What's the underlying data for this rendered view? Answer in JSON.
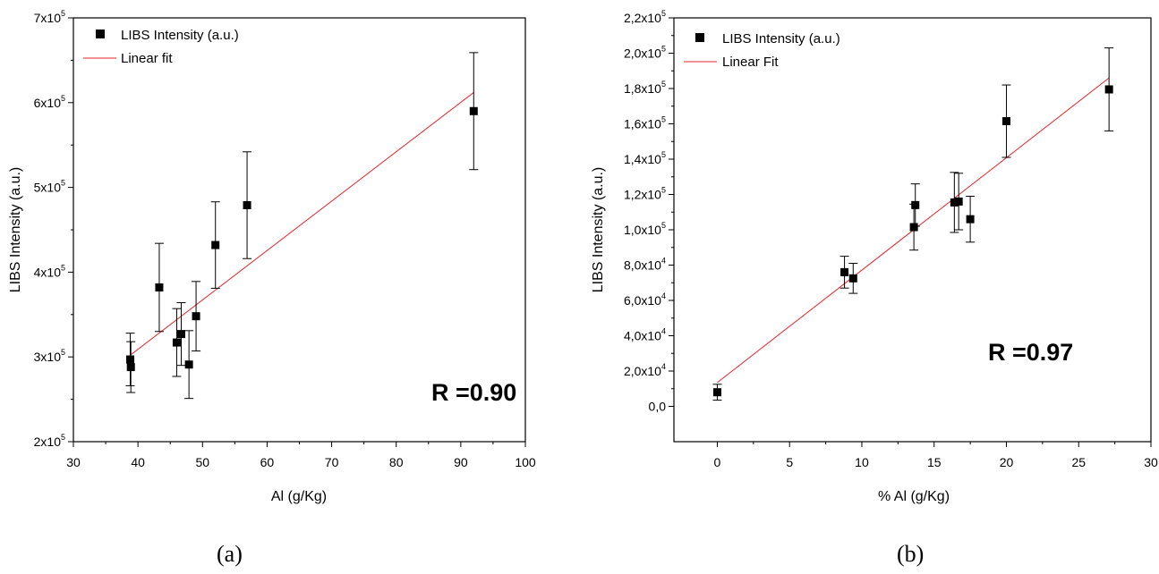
{
  "chart_data": [
    {
      "type": "scatter",
      "panel_label": "(a)",
      "xlabel": "Al (g/Kg)",
      "ylabel": "LIBS Intensity (a.u.)",
      "xlim": [
        30,
        100
      ],
      "ylim": [
        200000,
        700000
      ],
      "x_ticks": [
        30,
        40,
        50,
        60,
        70,
        80,
        90,
        100
      ],
      "x_tick_labels": [
        "30",
        "40",
        "50",
        "60",
        "70",
        "80",
        "90",
        "100"
      ],
      "y_ticks": [
        200000,
        300000,
        400000,
        500000,
        600000,
        700000
      ],
      "y_tick_labels": [
        {
          "mantissa": "2x10",
          "exp": "5"
        },
        {
          "mantissa": "3x10",
          "exp": "5"
        },
        {
          "mantissa": "4x10",
          "exp": "5"
        },
        {
          "mantissa": "5x10",
          "exp": "5"
        },
        {
          "mantissa": "6x10",
          "exp": "5"
        },
        {
          "mantissa": "7x10",
          "exp": "5"
        }
      ],
      "annotation": "R =0.90",
      "legend_position": "top-left",
      "series": [
        {
          "name": "LIBS Intensity (a.u.)",
          "kind": "points",
          "color": "#000000",
          "points": [
            {
              "x": 38.8,
              "y": 297000,
              "err": 31000
            },
            {
              "x": 38.9,
              "y": 288000,
              "err": 30000
            },
            {
              "x": 43.3,
              "y": 382000,
              "err": 52000
            },
            {
              "x": 46.0,
              "y": 317000,
              "err": 40000
            },
            {
              "x": 46.7,
              "y": 327000,
              "err": 37000
            },
            {
              "x": 47.9,
              "y": 291000,
              "err": 40000
            },
            {
              "x": 49.0,
              "y": 348000,
              "err": 41000
            },
            {
              "x": 52.0,
              "y": 432000,
              "err": 51000
            },
            {
              "x": 56.9,
              "y": 479000,
              "err": 63000
            },
            {
              "x": 92.0,
              "y": 590000,
              "err": 69000
            }
          ]
        },
        {
          "name": "Linear fit",
          "kind": "line",
          "color": "#e8232a",
          "points": [
            {
              "x": 38.8,
              "y": 302000
            },
            {
              "x": 92.0,
              "y": 612000
            }
          ]
        }
      ]
    },
    {
      "type": "scatter",
      "panel_label": "(b)",
      "xlabel": "% Al (g/Kg)",
      "ylabel": "LIBS Intensity (a.u.)",
      "xlim": [
        -3,
        30
      ],
      "ylim": [
        -20000,
        220000
      ],
      "x_ticks": [
        0,
        5,
        10,
        15,
        20,
        25,
        30
      ],
      "x_tick_labels": [
        "0",
        "5",
        "10",
        "15",
        "20",
        "25",
        "30"
      ],
      "y_ticks": [
        0,
        20000,
        40000,
        60000,
        80000,
        100000,
        120000,
        140000,
        160000,
        180000,
        200000,
        220000
      ],
      "y_tick_labels": [
        {
          "mantissa": "0,0",
          "exp": ""
        },
        {
          "mantissa": "2,0x10",
          "exp": "4"
        },
        {
          "mantissa": "4,0x10",
          "exp": "4"
        },
        {
          "mantissa": "6,0x10",
          "exp": "4"
        },
        {
          "mantissa": "8,0x10",
          "exp": "4"
        },
        {
          "mantissa": "1,0x10",
          "exp": "5"
        },
        {
          "mantissa": "1,2x10",
          "exp": "5"
        },
        {
          "mantissa": "1,4x10",
          "exp": "5"
        },
        {
          "mantissa": "1,6x10",
          "exp": "5"
        },
        {
          "mantissa": "1,8x10",
          "exp": "5"
        },
        {
          "mantissa": "2,0x10",
          "exp": "5"
        },
        {
          "mantissa": "2,2x10",
          "exp": "5"
        }
      ],
      "annotation": "R =0.97",
      "legend_position": "top-left",
      "series": [
        {
          "name": "LIBS Intensity (a.u.)",
          "kind": "points",
          "color": "#000000",
          "points": [
            {
              "x": 0.0,
              "y": 8000,
              "err": 4500
            },
            {
              "x": 8.8,
              "y": 76000,
              "err": 9000
            },
            {
              "x": 9.4,
              "y": 72500,
              "err": 8500
            },
            {
              "x": 13.6,
              "y": 101500,
              "err": 13000
            },
            {
              "x": 13.7,
              "y": 114000,
              "err": 12000
            },
            {
              "x": 16.4,
              "y": 115500,
              "err": 17000
            },
            {
              "x": 16.7,
              "y": 116000,
              "err": 16000
            },
            {
              "x": 17.5,
              "y": 106000,
              "err": 13000
            },
            {
              "x": 20.0,
              "y": 161500,
              "err": 20500
            },
            {
              "x": 27.1,
              "y": 179500,
              "err": 23500
            }
          ]
        },
        {
          "name": "Linear Fit",
          "kind": "line",
          "color": "#e8232a",
          "points": [
            {
              "x": 0.0,
              "y": 13500
            },
            {
              "x": 27.1,
              "y": 186000
            }
          ]
        }
      ]
    }
  ]
}
